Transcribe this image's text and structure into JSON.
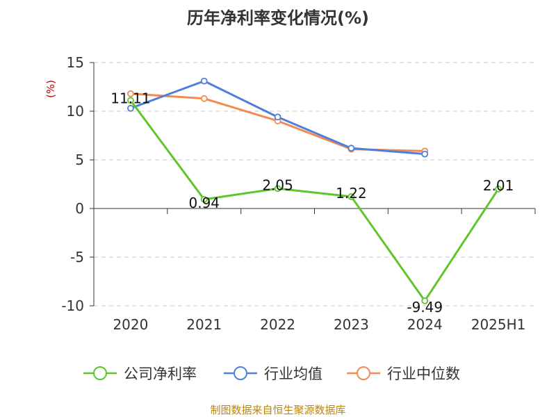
{
  "chart_data": {
    "type": "line",
    "title": "历年净利率变化情况(%)",
    "unit_label": "(%)",
    "categories": [
      "2020",
      "2021",
      "2022",
      "2023",
      "2024",
      "2025H1"
    ],
    "ylim": [
      -10,
      15
    ],
    "yticks": [
      15,
      10,
      5,
      0,
      -5,
      -10
    ],
    "grid": true,
    "legend_position": "bottom",
    "series": [
      {
        "name": "公司净利率",
        "color": "#5ec52b",
        "values": [
          11.11,
          0.94,
          2.05,
          1.22,
          -9.49,
          2.01
        ],
        "labels": [
          "11.11",
          "0.94",
          "2.05",
          "1.22",
          "-9.49",
          "2.01"
        ]
      },
      {
        "name": "行业均值",
        "color": "#4f7fdc",
        "values": [
          10.3,
          13.1,
          9.4,
          6.2,
          5.6,
          null
        ]
      },
      {
        "name": "行业中位数",
        "color": "#f28a52",
        "values": [
          11.8,
          11.3,
          9.0,
          6.1,
          5.9,
          null
        ]
      }
    ],
    "source": "制图数据来自恒生聚源数据库"
  }
}
